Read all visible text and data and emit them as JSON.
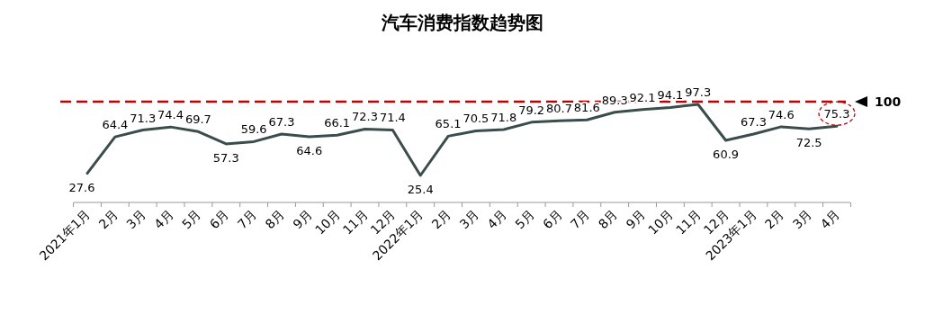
{
  "chart_data": {
    "type": "line",
    "title": "汽车消费指数趋势图",
    "categories": [
      "2021年1月",
      "2月",
      "3月",
      "4月",
      "5月",
      "6月",
      "7月",
      "8月",
      "9月",
      "10月",
      "11月",
      "12月",
      "2022年1月",
      "2月",
      "3月",
      "4月",
      "5月",
      "6月",
      "7月",
      "8月",
      "9月",
      "10月",
      "11月",
      "12月",
      "2023年1月",
      "2月",
      "3月",
      "4月"
    ],
    "series": [
      {
        "color": "#3b4d4b",
        "values": [
          27.6,
          64.4,
          71.3,
          74.4,
          69.7,
          57.3,
          59.6,
          67.3,
          64.6,
          66.1,
          72.3,
          71.4,
          25.4,
          65.1,
          70.5,
          71.8,
          79.2,
          80.7,
          81.6,
          89.3,
          92.1,
          94.1,
          97.3,
          60.9,
          67.3,
          74.6,
          72.5,
          75.3
        ]
      }
    ],
    "tick_labels": "x",
    "data_labels": true,
    "marker": "none",
    "line_style": "solid",
    "grid": false,
    "ref_lines": [
      {
        "axis": "y",
        "value": 100,
        "label": "100",
        "color": "#c00000",
        "line_style": "dashed"
      }
    ]
  }
}
